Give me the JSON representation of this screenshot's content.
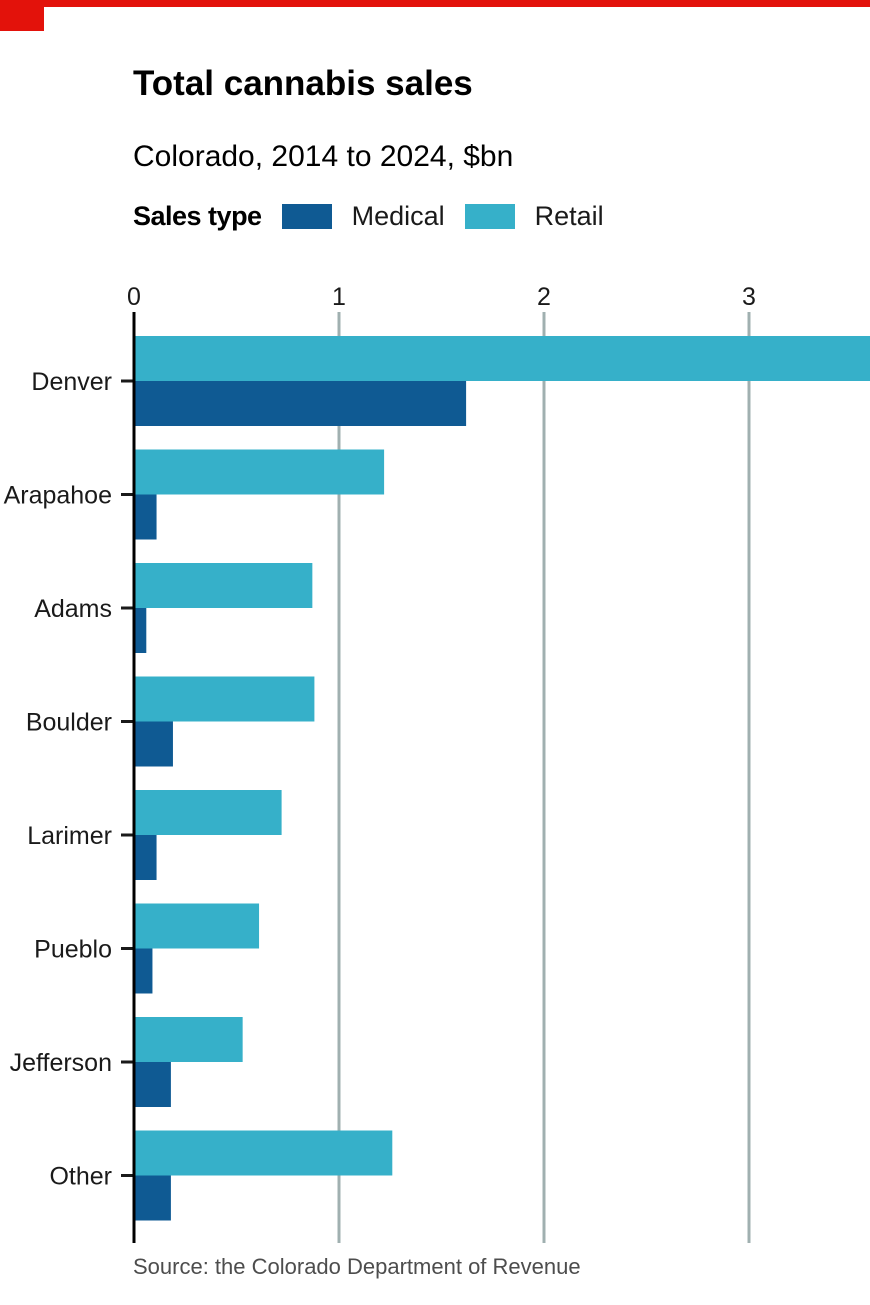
{
  "header": {
    "title": "Total cannabis sales",
    "subtitle": "Colorado, 2014 to 2024, $bn"
  },
  "legend": {
    "title": "Sales type",
    "items": [
      {
        "label": "Medical",
        "color": "#0f5a93"
      },
      {
        "label": "Retail",
        "color": "#36b0c9"
      }
    ]
  },
  "footer": {
    "source": "Source: the Colorado Department of Revenue"
  },
  "colors": {
    "accent": "#e3120b",
    "medical": "#0f5a93",
    "retail": "#36b0c9",
    "grid": "#a0b0b0"
  },
  "chart_data": {
    "type": "bar",
    "orientation": "horizontal",
    "title": "Total cannabis sales",
    "subtitle": "Colorado, 2014 to 2024, $bn",
    "categories": [
      "Denver",
      "Arapahoe",
      "Adams",
      "Boulder",
      "Larimer",
      "Pueblo",
      "Jefferson",
      "Other"
    ],
    "series": [
      {
        "name": "Retail",
        "values": [
          3.61,
          1.22,
          0.87,
          0.88,
          0.72,
          0.61,
          0.53,
          1.26
        ]
      },
      {
        "name": "Medical",
        "values": [
          1.62,
          0.11,
          0.06,
          0.19,
          0.11,
          0.09,
          0.18,
          0.18
        ]
      }
    ],
    "xticks": [
      "0",
      "1",
      "2",
      "3"
    ],
    "xlim": [
      0,
      3.61
    ],
    "grid": "vertical",
    "legend_position": "top"
  }
}
